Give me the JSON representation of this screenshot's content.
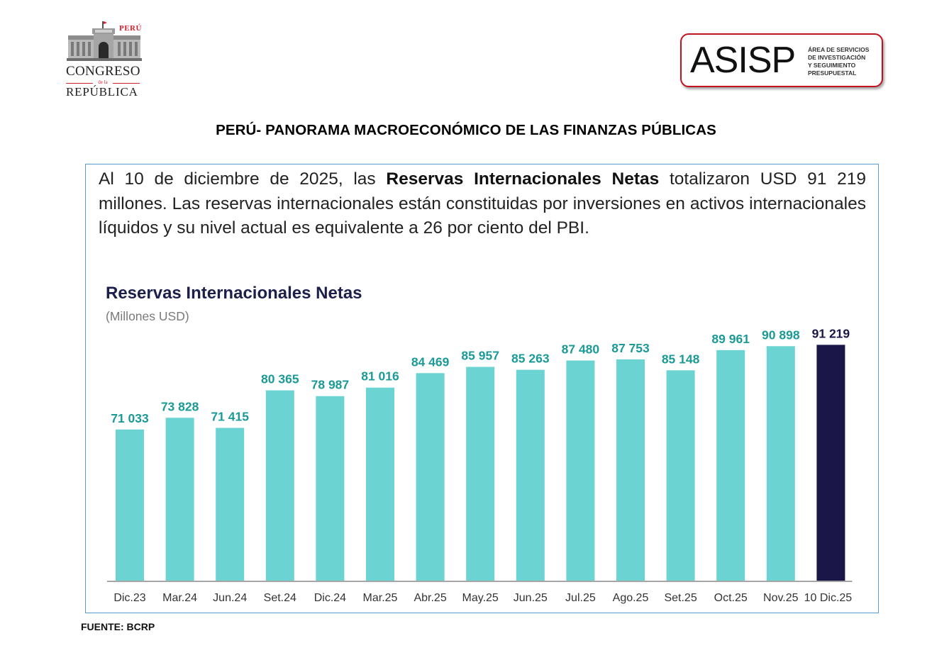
{
  "header": {
    "left_logo": {
      "country": "PERÚ",
      "line1": "CONGRESO",
      "line2": "de la",
      "line3": "REPÚBLICA"
    },
    "right_logo": {
      "acronym": "ASISP",
      "subtitle_lines": [
        "ÁREA DE SERVICIOS",
        "DE INVESTIGACIÓN",
        "Y SEGUIMIENTO",
        "PRESUPUESTAL"
      ]
    }
  },
  "page_title": "PERÚ- PANORAMA MACROECONÓMICO DE LAS FINANZAS PÚBLICAS",
  "intro": {
    "before_bold": "Al 10 de diciembre de 2025, las ",
    "bold": "Reservas Internacionales Netas",
    "after_bold": " totalizaron USD 91 219 millones. Las reservas internacionales están constituidas por inversiones en activos internacionales líquidos y su nivel actual es equivalente a 26 por ciento del PBI."
  },
  "colors": {
    "bar": "#6bd3d1",
    "bar_highlight": "#1a1647",
    "label": "#1b9a98",
    "label_highlight": "#1a1647",
    "title": "#1c1f4a",
    "panel_border": "#5b9bd5",
    "axis": "#a6a6a6"
  },
  "chart_data": {
    "type": "bar",
    "title": "Reservas Internacionales Netas",
    "subtitle": "(Millones USD)",
    "xlabel": "",
    "ylabel": "",
    "categories": [
      "Dic.23",
      "Mar.24",
      "Jun.24",
      "Set.24",
      "Dic.24",
      "Mar.25",
      "Abr.25",
      "May.25",
      "Jun.25",
      "Jul.25",
      "Ago.25",
      "Set.25",
      "Oct.25",
      "Nov.25",
      "10 Dic.25"
    ],
    "values": [
      71033,
      73828,
      71415,
      80365,
      78987,
      81016,
      84469,
      85957,
      85263,
      87480,
      87753,
      85148,
      89961,
      90898,
      91219
    ],
    "value_labels": [
      "71 033",
      "73 828",
      "71 415",
      "80 365",
      "78 987",
      "81 016",
      "84 469",
      "85 957",
      "85 263",
      "87 480",
      "87 753",
      "85 148",
      "89 961",
      "90 898",
      "91 219"
    ],
    "highlight_index": 14,
    "ylim": [
      35000,
      95000
    ],
    "grid": false,
    "legend": "none"
  },
  "source": "FUENTE: BCRP"
}
